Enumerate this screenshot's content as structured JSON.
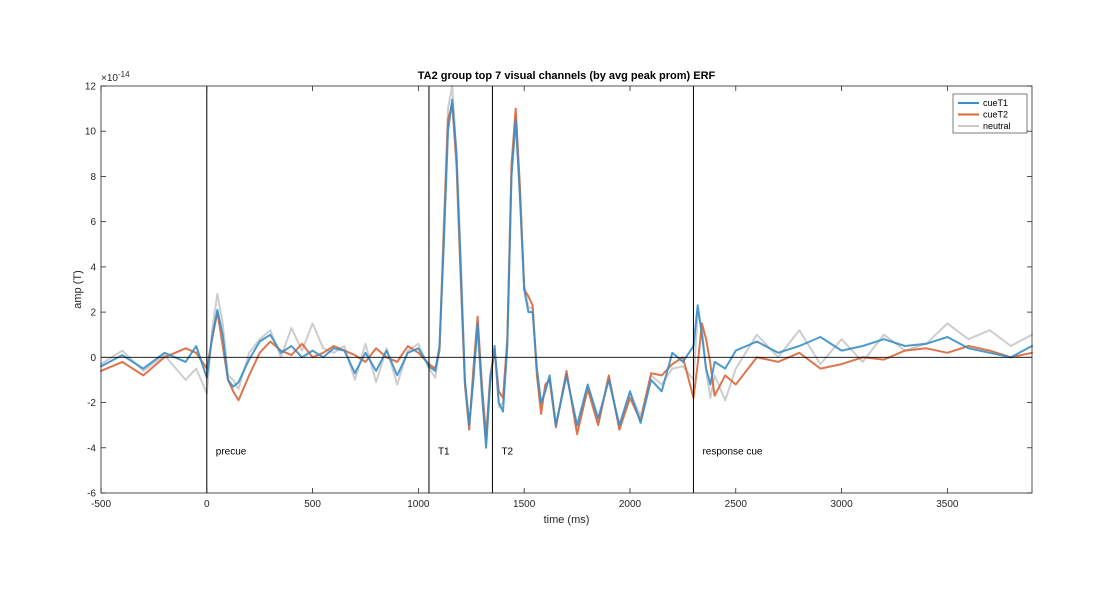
{
  "chart_data": {
    "type": "line",
    "title": "TA2 group top 7 visual channels (by avg peak prom) ERF",
    "xlabel": "time (ms)",
    "ylabel": "amp (T)",
    "y_exponent_label": "×10",
    "y_exponent": "-14",
    "xlim": [
      -500,
      3900
    ],
    "ylim": [
      -6,
      12
    ],
    "xticks": [
      -500,
      0,
      500,
      1000,
      1500,
      2000,
      2500,
      3000,
      3500
    ],
    "yticks": [
      -6,
      -4,
      -2,
      0,
      2,
      4,
      6,
      8,
      10,
      12
    ],
    "legend_position": "top-right",
    "grid": false,
    "events": [
      {
        "t": 0,
        "label": "precue"
      },
      {
        "t": 1050,
        "label": "T1"
      },
      {
        "t": 1350,
        "label": "T2"
      },
      {
        "t": 2300,
        "label": "response cue"
      }
    ],
    "series": [
      {
        "name": "cueT1",
        "color": "#3a8fc8",
        "x": [
          -500,
          -400,
          -300,
          -200,
          -100,
          -50,
          0,
          25,
          50,
          75,
          100,
          125,
          150,
          200,
          250,
          300,
          350,
          400,
          450,
          500,
          550,
          600,
          650,
          700,
          750,
          800,
          850,
          900,
          950,
          1000,
          1050,
          1080,
          1100,
          1120,
          1140,
          1160,
          1180,
          1200,
          1220,
          1240,
          1260,
          1280,
          1300,
          1320,
          1340,
          1360,
          1380,
          1400,
          1420,
          1440,
          1460,
          1480,
          1500,
          1520,
          1540,
          1560,
          1580,
          1600,
          1620,
          1650,
          1700,
          1750,
          1800,
          1850,
          1900,
          1950,
          2000,
          2050,
          2100,
          2150,
          2200,
          2250,
          2300,
          2320,
          2340,
          2360,
          2380,
          2400,
          2450,
          2500,
          2600,
          2700,
          2800,
          2900,
          3000,
          3100,
          3200,
          3300,
          3400,
          3500,
          3600,
          3700,
          3800,
          3900
        ],
        "values": [
          -0.4,
          0.1,
          -0.5,
          0.2,
          -0.2,
          0.5,
          -0.9,
          0.9,
          2.1,
          1.0,
          -1.0,
          -1.3,
          -1.1,
          -0.1,
          0.7,
          1.0,
          0.2,
          0.5,
          0.0,
          0.3,
          0.0,
          0.4,
          0.3,
          -0.7,
          0.2,
          -0.6,
          0.3,
          -0.8,
          0.2,
          0.4,
          -0.4,
          -0.6,
          0.5,
          5.0,
          10.0,
          11.4,
          9.0,
          4.0,
          -1.0,
          -3.0,
          -1.0,
          1.5,
          -1.5,
          -4.0,
          -1.0,
          0.5,
          -2.0,
          -2.4,
          0.5,
          8.0,
          10.5,
          7.0,
          3.0,
          2.0,
          2.0,
          -0.5,
          -2.0,
          -1.5,
          -0.8,
          -3.0,
          -0.8,
          -3.0,
          -1.2,
          -2.7,
          -1.0,
          -3.0,
          -1.5,
          -2.9,
          -1.0,
          -1.5,
          0.2,
          -0.2,
          0.5,
          2.3,
          1.0,
          -0.5,
          -1.2,
          -0.2,
          -0.5,
          0.3,
          0.7,
          0.2,
          0.5,
          0.9,
          0.3,
          0.5,
          0.8,
          0.5,
          0.6,
          0.9,
          0.4,
          0.2,
          0.0,
          0.5
        ]
      },
      {
        "name": "cueT2",
        "color": "#d9663a",
        "x": [
          -500,
          -400,
          -300,
          -200,
          -100,
          -50,
          0,
          25,
          50,
          75,
          100,
          125,
          150,
          200,
          250,
          300,
          350,
          400,
          450,
          500,
          550,
          600,
          650,
          700,
          750,
          800,
          850,
          900,
          950,
          1000,
          1050,
          1080,
          1100,
          1120,
          1140,
          1160,
          1180,
          1200,
          1220,
          1240,
          1260,
          1280,
          1300,
          1320,
          1340,
          1360,
          1380,
          1400,
          1420,
          1440,
          1460,
          1480,
          1500,
          1520,
          1540,
          1560,
          1580,
          1600,
          1620,
          1650,
          1700,
          1750,
          1800,
          1850,
          1900,
          1950,
          2000,
          2050,
          2100,
          2150,
          2200,
          2250,
          2300,
          2320,
          2340,
          2360,
          2380,
          2400,
          2450,
          2500,
          2600,
          2700,
          2800,
          2900,
          3000,
          3100,
          3200,
          3300,
          3400,
          3500,
          3600,
          3700,
          3800,
          3900
        ],
        "values": [
          -0.6,
          -0.2,
          -0.8,
          0.0,
          0.4,
          0.2,
          -0.5,
          0.8,
          2.0,
          0.5,
          -1.0,
          -1.5,
          -1.9,
          -0.8,
          0.2,
          0.7,
          0.3,
          0.1,
          0.6,
          0.0,
          0.2,
          0.5,
          0.3,
          0.1,
          -0.2,
          0.4,
          0.0,
          -0.2,
          0.5,
          0.2,
          -0.3,
          -0.5,
          0.3,
          5.5,
          10.5,
          11.2,
          8.5,
          3.5,
          -1.2,
          -3.2,
          -0.5,
          1.8,
          -1.2,
          -3.5,
          -0.8,
          0.3,
          -1.5,
          -1.8,
          0.8,
          8.5,
          11.0,
          7.5,
          3.0,
          2.7,
          2.3,
          -0.8,
          -2.5,
          -1.2,
          -1.0,
          -3.1,
          -0.6,
          -3.4,
          -1.4,
          -3.0,
          -0.8,
          -3.2,
          -1.8,
          -2.8,
          -0.7,
          -0.8,
          -0.3,
          0.0,
          -1.8,
          -0.3,
          1.5,
          0.8,
          -0.3,
          -1.7,
          -0.8,
          -1.2,
          0.0,
          -0.2,
          0.2,
          -0.5,
          -0.3,
          0.0,
          -0.1,
          0.3,
          0.4,
          0.2,
          0.5,
          0.3,
          0.0,
          0.2
        ]
      },
      {
        "name": "neutral",
        "color": "#c8c8c8",
        "x": [
          -500,
          -400,
          -300,
          -200,
          -100,
          -50,
          0,
          25,
          50,
          75,
          100,
          125,
          150,
          200,
          250,
          300,
          350,
          400,
          450,
          500,
          550,
          600,
          650,
          700,
          750,
          800,
          850,
          900,
          950,
          1000,
          1050,
          1080,
          1100,
          1120,
          1140,
          1160,
          1180,
          1200,
          1220,
          1240,
          1260,
          1280,
          1300,
          1320,
          1340,
          1360,
          1380,
          1400,
          1420,
          1440,
          1460,
          1480,
          1500,
          1520,
          1540,
          1560,
          1580,
          1600,
          1620,
          1650,
          1700,
          1750,
          1800,
          1850,
          1900,
          1950,
          2000,
          2050,
          2100,
          2150,
          2200,
          2250,
          2300,
          2320,
          2340,
          2360,
          2380,
          2400,
          2450,
          2500,
          2600,
          2700,
          2800,
          2900,
          3000,
          3100,
          3200,
          3300,
          3400,
          3500,
          3600,
          3700,
          3800,
          3900
        ],
        "values": [
          -0.3,
          0.3,
          -0.6,
          0.1,
          -1.0,
          -0.5,
          -1.6,
          1.2,
          2.8,
          1.5,
          -0.8,
          -1.0,
          -1.4,
          0.2,
          0.8,
          1.2,
          0.0,
          1.3,
          0.3,
          1.5,
          0.4,
          0.2,
          0.5,
          -1.0,
          0.6,
          -1.1,
          0.4,
          -1.2,
          0.3,
          0.6,
          -0.5,
          -0.9,
          0.4,
          6.0,
          11.0,
          12.0,
          9.0,
          4.5,
          -1.0,
          -3.0,
          -0.8,
          1.2,
          -1.8,
          -3.8,
          -1.2,
          0.4,
          -2.2,
          -2.0,
          0.6,
          8.2,
          10.7,
          7.2,
          3.2,
          2.2,
          2.2,
          -0.6,
          -2.2,
          -1.4,
          -0.9,
          -3.0,
          -0.7,
          -3.2,
          -1.3,
          -2.9,
          -0.9,
          -3.1,
          -1.6,
          -2.6,
          -0.8,
          -1.2,
          -0.5,
          -0.4,
          -1.0,
          2.0,
          1.3,
          -0.6,
          -1.8,
          -0.8,
          -1.9,
          -0.5,
          1.0,
          0.0,
          1.2,
          -0.3,
          0.8,
          -0.2,
          1.0,
          0.3,
          0.6,
          1.5,
          0.8,
          1.2,
          0.5,
          1.0
        ]
      }
    ]
  }
}
